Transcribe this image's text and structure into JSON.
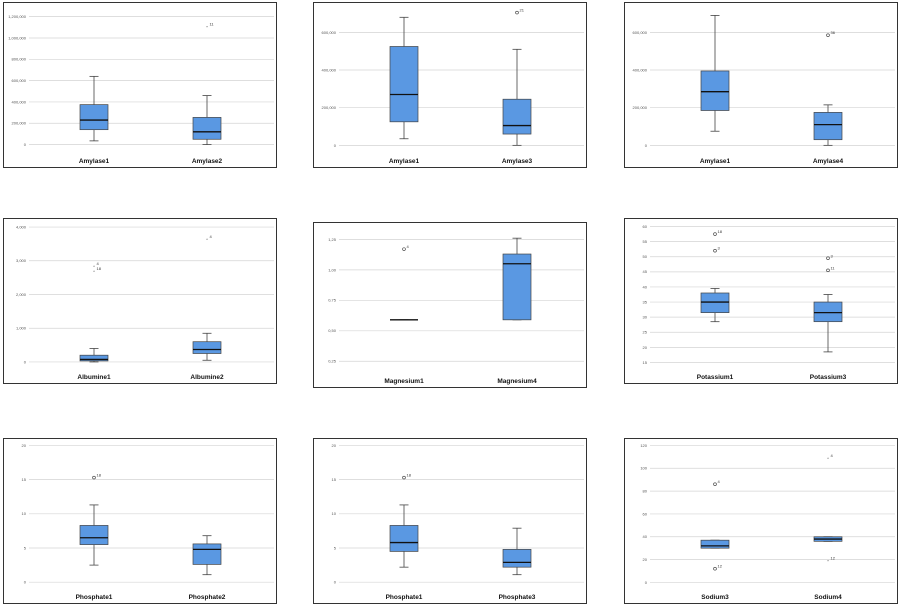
{
  "colors": {
    "box_fill": "#5a98e2",
    "box_stroke": "#444444",
    "grid": "#d4d4d4",
    "frame": "#333333"
  },
  "chart_data": [
    {
      "type": "boxplot",
      "ylim": [
        -60000,
        1300000
      ],
      "ticks": [
        0,
        200000,
        400000,
        600000,
        800000,
        1000000,
        1200000
      ],
      "tick_labels": [
        "0",
        "200,000",
        "400,000",
        "600,000",
        "800,000",
        "1,000,000",
        "1,200,000"
      ],
      "series": [
        {
          "name": "Amylase1",
          "q1": 140000,
          "median": 230000,
          "q3": 375000,
          "wlow": 35000,
          "whigh": 640000,
          "outliers": []
        },
        {
          "name": "Amylase2",
          "q1": 50000,
          "median": 120000,
          "q3": 255000,
          "wlow": 0,
          "whigh": 460000,
          "outliers": [
            {
              "value": 1110000,
              "label": "11",
              "marker": "star"
            }
          ]
        }
      ]
    },
    {
      "type": "boxplot",
      "ylim": [
        -30000,
        740000
      ],
      "ticks": [
        0,
        200000,
        400000,
        600000
      ],
      "tick_labels": [
        "0",
        "200,000",
        "400,000",
        "600,000"
      ],
      "series": [
        {
          "name": "Amylase1",
          "q1": 125000,
          "median": 270000,
          "q3": 525000,
          "wlow": 35000,
          "whigh": 680000,
          "outliers": []
        },
        {
          "name": "Amylase3",
          "q1": 60000,
          "median": 105000,
          "q3": 245000,
          "wlow": 0,
          "whigh": 510000,
          "outliers": [
            {
              "value": 705000,
              "label": "21",
              "marker": "circle"
            }
          ]
        }
      ]
    },
    {
      "type": "boxplot",
      "ylim": [
        -30000,
        740000
      ],
      "ticks": [
        0,
        200000,
        400000,
        600000
      ],
      "tick_labels": [
        "0",
        "200,000",
        "400,000",
        "600,000"
      ],
      "series": [
        {
          "name": "Amylase1",
          "q1": 185000,
          "median": 285000,
          "q3": 395000,
          "wlow": 75000,
          "whigh": 690000,
          "outliers": []
        },
        {
          "name": "Amylase4",
          "q1": 30000,
          "median": 110000,
          "q3": 175000,
          "wlow": 0,
          "whigh": 215000,
          "outliers": [
            {
              "value": 585000,
              "label": "36",
              "marker": "circle"
            }
          ]
        }
      ]
    },
    {
      "type": "boxplot",
      "ylim": [
        -150,
        4150
      ],
      "ticks": [
        0,
        1000,
        2000,
        3000,
        4000
      ],
      "tick_labels": [
        "0",
        "1,000",
        "2,000",
        "3,000",
        "4,000"
      ],
      "series": [
        {
          "name": "Albumine1",
          "q1": 30,
          "median": 75,
          "q3": 200,
          "wlow": 0,
          "whigh": 400,
          "outliers": [
            {
              "value": 2850,
              "label": "4",
              "marker": "star"
            },
            {
              "value": 2700,
              "label": "18",
              "marker": "star"
            }
          ]
        },
        {
          "name": "Albumine2",
          "q1": 250,
          "median": 370,
          "q3": 600,
          "wlow": 50,
          "whigh": 850,
          "outliers": [
            {
              "value": 3650,
              "label": "4",
              "marker": "star"
            }
          ]
        }
      ]
    },
    {
      "type": "boxplot",
      "ylim": [
        0.17,
        1.36
      ],
      "ticks": [
        0.25,
        0.5,
        0.75,
        1.0,
        1.25
      ],
      "tick_labels": [
        "0,25",
        "0,50",
        "0,75",
        "1,00",
        "1,25"
      ],
      "series": [
        {
          "name": "Magnesium1",
          "q1": 0.59,
          "median": 0.59,
          "q3": 0.59,
          "wlow": 0.59,
          "whigh": 0.59,
          "outliers": [
            {
              "value": 1.17,
              "label": "4",
              "marker": "circle"
            }
          ]
        },
        {
          "name": "Magnesium4",
          "q1": 0.59,
          "median": 1.05,
          "q3": 1.13,
          "wlow": 0.59,
          "whigh": 1.26,
          "outliers": []
        }
      ]
    },
    {
      "type": "boxplot",
      "ylim": [
        13.5,
        61.5
      ],
      "ticks": [
        15,
        20,
        25,
        30,
        35,
        40,
        45,
        50,
        55,
        60
      ],
      "tick_labels": [
        "15",
        "20",
        "25",
        "30",
        "35",
        "40",
        "45",
        "50",
        "55",
        "60"
      ],
      "series": [
        {
          "name": "Potassium1",
          "q1": 31.5,
          "median": 35,
          "q3": 38,
          "wlow": 28.5,
          "whigh": 39.5,
          "outliers": [
            {
              "value": 57.5,
              "label": "18",
              "marker": "circle"
            },
            {
              "value": 52,
              "label": "3",
              "marker": "circle"
            }
          ]
        },
        {
          "name": "Potassium3",
          "q1": 28.5,
          "median": 31.5,
          "q3": 35,
          "wlow": 18.5,
          "whigh": 37.5,
          "outliers": [
            {
              "value": 49.5,
              "label": "3",
              "marker": "circle"
            },
            {
              "value": 45.5,
              "label": "11",
              "marker": "circle"
            }
          ]
        }
      ]
    },
    {
      "type": "boxplot",
      "ylim": [
        -0.7,
        20.5
      ],
      "ticks": [
        0,
        5,
        10,
        15,
        20
      ],
      "tick_labels": [
        "0",
        "5",
        "10",
        "15",
        "20"
      ],
      "series": [
        {
          "name": "Phosphate1",
          "q1": 5.5,
          "median": 6.5,
          "q3": 8.3,
          "wlow": 2.5,
          "whigh": 11.3,
          "outliers": [
            {
              "value": 15.3,
              "label": "18",
              "marker": "circle"
            }
          ]
        },
        {
          "name": "Phosphate2",
          "q1": 2.6,
          "median": 4.8,
          "q3": 5.6,
          "wlow": 1.1,
          "whigh": 6.8,
          "outliers": []
        }
      ]
    },
    {
      "type": "boxplot",
      "ylim": [
        -0.7,
        20.5
      ],
      "ticks": [
        0,
        5,
        10,
        15,
        20
      ],
      "tick_labels": [
        "0",
        "5",
        "10",
        "15",
        "20"
      ],
      "series": [
        {
          "name": "Phosphate1",
          "q1": 4.5,
          "median": 5.8,
          "q3": 8.3,
          "wlow": 2.2,
          "whigh": 11.3,
          "outliers": [
            {
              "value": 15.3,
              "label": "18",
              "marker": "circle"
            }
          ]
        },
        {
          "name": "Phosphate3",
          "q1": 2.2,
          "median": 2.9,
          "q3": 4.8,
          "wlow": 1.1,
          "whigh": 7.9,
          "outliers": []
        }
      ]
    },
    {
      "type": "boxplot",
      "ylim": [
        -4,
        123
      ],
      "ticks": [
        0,
        20,
        40,
        60,
        80,
        100,
        120
      ],
      "tick_labels": [
        "0",
        "20",
        "40",
        "60",
        "80",
        "100",
        "120"
      ],
      "series": [
        {
          "name": "Sodium3",
          "q1": 30,
          "median": 32,
          "q3": 37,
          "wlow": 30,
          "whigh": 37,
          "outliers": [
            {
              "value": 86,
              "label": "4",
              "marker": "circle"
            },
            {
              "value": 12,
              "label": "12",
              "marker": "circle"
            }
          ]
        },
        {
          "name": "Sodium4",
          "q1": 36,
          "median": 38,
          "q3": 40,
          "wlow": 36,
          "whigh": 40,
          "outliers": [
            {
              "value": 109,
              "label": "4",
              "marker": "star"
            },
            {
              "value": 19,
              "label": "12",
              "marker": "star"
            }
          ]
        }
      ]
    }
  ]
}
